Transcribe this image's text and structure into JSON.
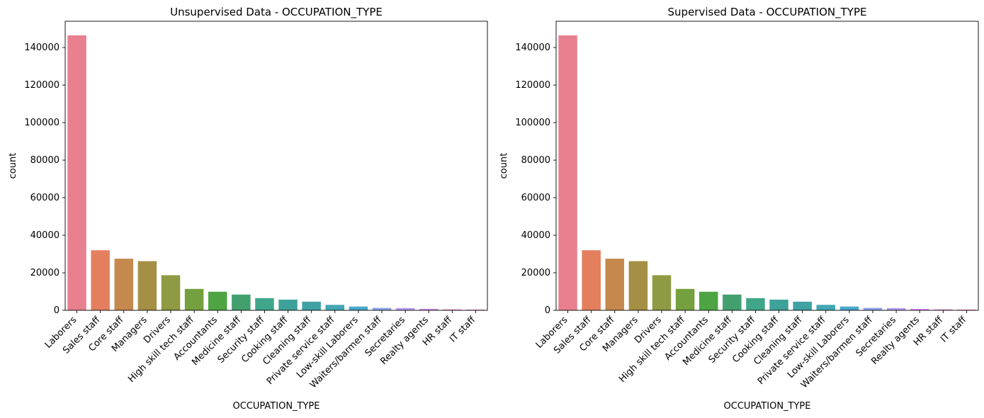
{
  "chart_data": [
    {
      "type": "bar",
      "title": "Unsupervised Data - OCCUPATION_TYPE",
      "xlabel": "OCCUPATION_TYPE",
      "ylabel": "count",
      "ylim": [
        0,
        154000
      ],
      "yticks": [
        0,
        20000,
        40000,
        60000,
        80000,
        100000,
        120000,
        140000
      ],
      "grid": false,
      "categories": [
        "Laborers",
        "Sales staff",
        "Core staff",
        "Managers",
        "Drivers",
        "High skill tech staff",
        "Accountants",
        "Medicine staff",
        "Security staff",
        "Cooking staff",
        "Cleaning staff",
        "Private service staff",
        "Low-skill Laborers",
        "Waiters/barmen staff",
        "Secretaries",
        "Realty agents",
        "HR staff",
        "IT staff"
      ],
      "values": [
        146500,
        32000,
        27500,
        26200,
        18700,
        11400,
        9900,
        8400,
        6500,
        5700,
        4600,
        2900,
        2000,
        1300,
        1200,
        800,
        500,
        400
      ],
      "colors": [
        "#e8808f",
        "#e47f5e",
        "#c6894d",
        "#a58f45",
        "#8f9a42",
        "#75a03f",
        "#4ea442",
        "#42a06f",
        "#40a68a",
        "#3fa29a",
        "#40a1a3",
        "#42a6b3",
        "#4aa7cc",
        "#8ca4e8",
        "#b39bef",
        "#d68ef0",
        "#e589dc",
        "#ec88bc"
      ]
    },
    {
      "type": "bar",
      "title": "Supervised Data - OCCUPATION_TYPE",
      "xlabel": "OCCUPATION_TYPE",
      "ylabel": "count",
      "ylim": [
        0,
        154000
      ],
      "yticks": [
        0,
        20000,
        40000,
        60000,
        80000,
        100000,
        120000,
        140000
      ],
      "grid": false,
      "categories": [
        "Laborers",
        "Sales staff",
        "Core staff",
        "Managers",
        "Drivers",
        "High skill tech staff",
        "Accountants",
        "Medicine staff",
        "Security staff",
        "Cooking staff",
        "Cleaning staff",
        "Private service staff",
        "Low-skill Laborers",
        "Waiters/barmen staff",
        "Secretaries",
        "Realty agents",
        "HR staff",
        "IT staff"
      ],
      "values": [
        146500,
        32000,
        27500,
        26200,
        18700,
        11400,
        9900,
        8400,
        6500,
        5700,
        4600,
        2900,
        2000,
        1300,
        1200,
        800,
        500,
        400
      ],
      "colors": [
        "#e8808f",
        "#e47f5e",
        "#c6894d",
        "#a58f45",
        "#8f9a42",
        "#75a03f",
        "#4ea442",
        "#42a06f",
        "#40a68a",
        "#3fa29a",
        "#40a1a3",
        "#42a6b3",
        "#4aa7cc",
        "#8ca4e8",
        "#b39bef",
        "#d68ef0",
        "#e589dc",
        "#ec88bc"
      ]
    }
  ]
}
